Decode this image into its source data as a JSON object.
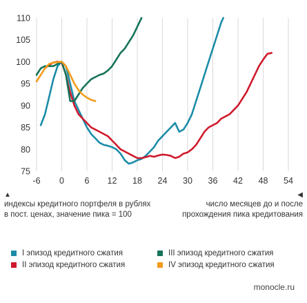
{
  "chart_data": {
    "type": "line",
    "xlabel": "число месяцев до и после прохождения пика кредитования",
    "ylabel": "индексы кредитного портфеля в рублях в пост. ценах, значение пика = 100",
    "xlim": [
      -6,
      54
    ],
    "ylim": [
      75,
      110
    ],
    "xticks": [
      -6,
      0,
      6,
      12,
      18,
      24,
      30,
      36,
      42,
      48,
      54
    ],
    "yticks": [
      75,
      80,
      85,
      90,
      95,
      100,
      105,
      110
    ],
    "grid": "vertical",
    "legend_position": "bottom",
    "series": [
      {
        "name": "I эпизод кредитного сжатия",
        "color": "#1a8ca8",
        "points": [
          [
            -5,
            85.5
          ],
          [
            -4,
            88
          ],
          [
            -3,
            92
          ],
          [
            -2,
            96
          ],
          [
            -1,
            99
          ],
          [
            0,
            100
          ],
          [
            1,
            99
          ],
          [
            2,
            95
          ],
          [
            3,
            91
          ],
          [
            4,
            89
          ],
          [
            5,
            87
          ],
          [
            6,
            85
          ],
          [
            7,
            83.5
          ],
          [
            8,
            82.5
          ],
          [
            9,
            81.5
          ],
          [
            10,
            81
          ],
          [
            11,
            80.8
          ],
          [
            12,
            80.5
          ],
          [
            13,
            80
          ],
          [
            14,
            79
          ],
          [
            15,
            77.5
          ],
          [
            16,
            76.7
          ],
          [
            17,
            77
          ],
          [
            18,
            77.5
          ],
          [
            19,
            77.8
          ],
          [
            20,
            78.5
          ],
          [
            21,
            79.5
          ],
          [
            22,
            80.5
          ],
          [
            23,
            82
          ],
          [
            24,
            83
          ],
          [
            25,
            84
          ],
          [
            26,
            85
          ],
          [
            27,
            86
          ],
          [
            28,
            84
          ],
          [
            29,
            84.5
          ],
          [
            30,
            86
          ],
          [
            31,
            88
          ],
          [
            32,
            91
          ],
          [
            33,
            94
          ],
          [
            34,
            97
          ],
          [
            35,
            100
          ],
          [
            36,
            103
          ],
          [
            37,
            106
          ],
          [
            38,
            109
          ],
          [
            38.5,
            110
          ]
        ]
      },
      {
        "name": "II эпизод кредитного сжатия",
        "color": "#d0192c",
        "points": [
          [
            -4,
            98.5
          ],
          [
            -3,
            99.3
          ],
          [
            -2,
            99.8
          ],
          [
            -1,
            100
          ],
          [
            0,
            99.8
          ],
          [
            1,
            97
          ],
          [
            2,
            93
          ],
          [
            3,
            90
          ],
          [
            4,
            88
          ],
          [
            5,
            87
          ],
          [
            6,
            86
          ],
          [
            7,
            85
          ],
          [
            8,
            84.5
          ],
          [
            9,
            84
          ],
          [
            10,
            83.5
          ],
          [
            11,
            83
          ],
          [
            12,
            82
          ],
          [
            13,
            81
          ],
          [
            14,
            80
          ],
          [
            15,
            79.5
          ],
          [
            16,
            79
          ],
          [
            17,
            78.5
          ],
          [
            18,
            78
          ],
          [
            19,
            78
          ],
          [
            20,
            78.2
          ],
          [
            21,
            78.5
          ],
          [
            22,
            78.3
          ],
          [
            23,
            78.6
          ],
          [
            24,
            78.8
          ],
          [
            25,
            78.7
          ],
          [
            26,
            78.5
          ],
          [
            27,
            78
          ],
          [
            28,
            78.3
          ],
          [
            29,
            79
          ],
          [
            30,
            79.3
          ],
          [
            31,
            80
          ],
          [
            32,
            81
          ],
          [
            33,
            82.5
          ],
          [
            34,
            84
          ],
          [
            35,
            85
          ],
          [
            36,
            85.5
          ],
          [
            37,
            86
          ],
          [
            38,
            87
          ],
          [
            39,
            87.5
          ],
          [
            40,
            88
          ],
          [
            41,
            89
          ],
          [
            42,
            90
          ],
          [
            43,
            91.5
          ],
          [
            44,
            93
          ],
          [
            45,
            95
          ],
          [
            46,
            97
          ],
          [
            47,
            99
          ],
          [
            48,
            100.5
          ],
          [
            49,
            101.8
          ],
          [
            50,
            102
          ]
        ]
      },
      {
        "name": "III эпизод кредитного сжатия",
        "color": "#15735a",
        "points": [
          [
            -6,
            97
          ],
          [
            -5,
            98.5
          ],
          [
            -4,
            99
          ],
          [
            -3,
            99
          ],
          [
            -2,
            99
          ],
          [
            -1,
            99.5
          ],
          [
            0,
            100
          ],
          [
            1,
            97
          ],
          [
            2,
            91
          ],
          [
            3,
            91
          ],
          [
            4,
            92.5
          ],
          [
            5,
            94
          ],
          [
            6,
            95
          ],
          [
            7,
            96
          ],
          [
            8,
            96.5
          ],
          [
            9,
            97
          ],
          [
            10,
            97.3
          ],
          [
            11,
            98
          ],
          [
            12,
            99
          ],
          [
            13,
            100.5
          ],
          [
            14,
            102
          ],
          [
            15,
            103
          ],
          [
            16,
            104.5
          ],
          [
            17,
            106
          ],
          [
            18,
            108
          ],
          [
            19,
            110
          ]
        ]
      },
      {
        "name": "IV эпизод кредитного сжатия",
        "color": "#f39b1b",
        "points": [
          [
            -6,
            95.5
          ],
          [
            -5,
            97
          ],
          [
            -4,
            98.5
          ],
          [
            -3,
            99.5
          ],
          [
            -2,
            99.8
          ],
          [
            -1,
            99.9
          ],
          [
            0,
            100
          ],
          [
            1,
            99
          ],
          [
            2,
            97
          ],
          [
            3,
            95
          ],
          [
            4,
            93.5
          ],
          [
            5,
            92.5
          ],
          [
            6,
            91.8
          ],
          [
            7,
            91.3
          ],
          [
            8,
            91
          ]
        ]
      }
    ]
  },
  "notes": {
    "left_arrow": "▲",
    "left_text": "индексы кредитного портфеля в рублях в пост. ценах, значение пика = 100",
    "right_arrow": "◀",
    "right_text": "число месяцев до и после прохождения пика кредитования"
  },
  "legend": [
    {
      "label": "I эпизод кредитного сжатия",
      "color": "#1a8ca8"
    },
    {
      "label": "III эпизод кредитного сжатия",
      "color": "#15735a"
    },
    {
      "label": "II эпизод кредитного сжатия",
      "color": "#d0192c"
    },
    {
      "label": "IV эпизод кредитного сжатия",
      "color": "#f39b1b"
    }
  ],
  "source": "monocle.ru"
}
